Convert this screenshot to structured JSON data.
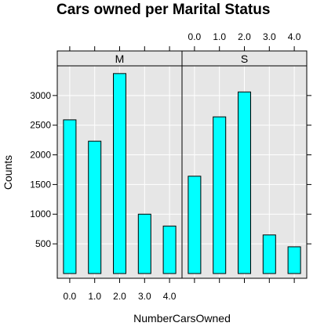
{
  "chart_data": {
    "type": "bar",
    "title": "Cars owned per Marital Status",
    "xlabel": "NumberCarsOwned",
    "ylabel": "Counts",
    "categories": [
      "0.0",
      "1.0",
      "2.0",
      "3.0",
      "4.0"
    ],
    "yticks": [
      500,
      1000,
      1500,
      2000,
      2500,
      3000
    ],
    "ylim": [
      -80,
      3500
    ],
    "grid": true,
    "layout": "two panels side by side, x tick labels below the left panel and above the right panel",
    "colors": {
      "bar_fill": "#00ffff",
      "bar_stroke": "#000000",
      "panel_bg": "#e6e6e6",
      "strip_bg": "#e6e6e6",
      "grid": "#ffffff"
    },
    "panels": [
      {
        "name": "M",
        "values": [
          2590,
          2230,
          3370,
          1000,
          800
        ]
      },
      {
        "name": "S",
        "values": [
          1640,
          2640,
          3060,
          650,
          450
        ]
      }
    ]
  }
}
